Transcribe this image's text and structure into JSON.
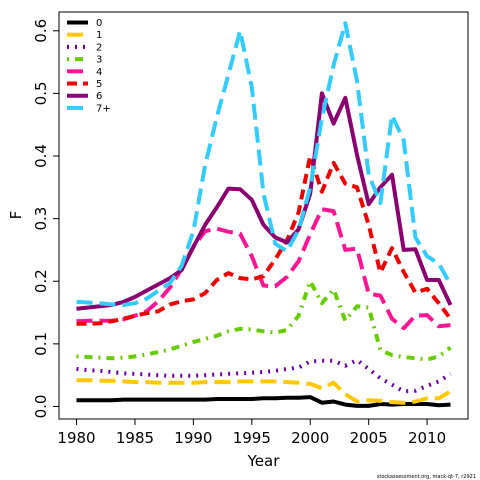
{
  "chart_data": {
    "type": "line",
    "xlabel": "Year",
    "ylabel": "F",
    "xlim": [
      1978.5,
      2013.5
    ],
    "ylim": [
      -0.02,
      0.63
    ],
    "xticks": [
      1980,
      1985,
      1990,
      1995,
      2000,
      2005,
      2010
    ],
    "xtick_labels": [
      "1980",
      "1985",
      "1990",
      "1995",
      "2000",
      "2005",
      "2010"
    ],
    "yticks": [
      0.0,
      0.1,
      0.2,
      0.3,
      0.4,
      0.5,
      0.6
    ],
    "ytick_labels": [
      "0.0",
      "0.1",
      "0.2",
      "0.3",
      "0.4",
      "0.5",
      "0.6"
    ],
    "grid": false,
    "legend_position": "top-left",
    "x": [
      1980,
      1981,
      1982,
      1983,
      1984,
      1985,
      1986,
      1987,
      1988,
      1989,
      1990,
      1991,
      1992,
      1993,
      1994,
      1995,
      1996,
      1997,
      1998,
      1999,
      2000,
      2001,
      2002,
      2003,
      2004,
      2005,
      2006,
      2007,
      2008,
      2009,
      2010,
      2011,
      2012
    ],
    "series": [
      {
        "name": "0",
        "color": "#000000",
        "dash": "solid",
        "values": [
          0.01,
          0.01,
          0.01,
          0.01,
          0.011,
          0.011,
          0.011,
          0.011,
          0.011,
          0.011,
          0.011,
          0.011,
          0.012,
          0.012,
          0.012,
          0.012,
          0.013,
          0.013,
          0.014,
          0.014,
          0.015,
          0.006,
          0.008,
          0.003,
          0.001,
          0.001,
          0.004,
          0.003,
          0.004,
          0.004,
          0.004,
          0.002,
          0.003
        ]
      },
      {
        "name": "1",
        "color": "#FFC800",
        "dash": "longdash",
        "values": [
          0.042,
          0.042,
          0.041,
          0.041,
          0.04,
          0.039,
          0.039,
          0.038,
          0.038,
          0.038,
          0.038,
          0.039,
          0.039,
          0.039,
          0.04,
          0.04,
          0.04,
          0.04,
          0.039,
          0.038,
          0.036,
          0.029,
          0.038,
          0.02,
          0.008,
          0.01,
          0.009,
          0.007,
          0.006,
          0.008,
          0.013,
          0.013,
          0.024
        ]
      },
      {
        "name": "2",
        "color": "#6A00AA",
        "dash": "dotted",
        "values": [
          0.06,
          0.058,
          0.057,
          0.055,
          0.053,
          0.052,
          0.051,
          0.05,
          0.049,
          0.049,
          0.049,
          0.05,
          0.051,
          0.052,
          0.053,
          0.054,
          0.055,
          0.057,
          0.06,
          0.062,
          0.072,
          0.073,
          0.073,
          0.065,
          0.074,
          0.06,
          0.045,
          0.035,
          0.024,
          0.025,
          0.033,
          0.04,
          0.052
        ]
      },
      {
        "name": "3",
        "color": "#66CC00",
        "dash": "dotdash",
        "values": [
          0.08,
          0.079,
          0.078,
          0.077,
          0.078,
          0.08,
          0.083,
          0.087,
          0.091,
          0.097,
          0.103,
          0.108,
          0.113,
          0.12,
          0.124,
          0.123,
          0.12,
          0.118,
          0.122,
          0.145,
          0.2,
          0.165,
          0.187,
          0.137,
          0.16,
          0.158,
          0.09,
          0.082,
          0.079,
          0.077,
          0.075,
          0.08,
          0.094
        ]
      },
      {
        "name": "4",
        "color": "#FF1493",
        "dash": "longdash",
        "values": [
          0.136,
          0.137,
          0.137,
          0.137,
          0.139,
          0.145,
          0.152,
          0.168,
          0.19,
          0.22,
          0.255,
          0.28,
          0.284,
          0.279,
          0.276,
          0.24,
          0.193,
          0.192,
          0.207,
          0.232,
          0.275,
          0.315,
          0.312,
          0.25,
          0.252,
          0.18,
          0.177,
          0.14,
          0.125,
          0.145,
          0.146,
          0.128,
          0.13
        ]
      },
      {
        "name": "5",
        "color": "#EE0000",
        "dash": "dashed",
        "values": [
          0.132,
          0.132,
          0.133,
          0.136,
          0.14,
          0.145,
          0.149,
          0.152,
          0.163,
          0.168,
          0.171,
          0.181,
          0.202,
          0.213,
          0.205,
          0.203,
          0.208,
          0.235,
          0.265,
          0.31,
          0.4,
          0.343,
          0.389,
          0.356,
          0.35,
          0.29,
          0.214,
          0.253,
          0.215,
          0.182,
          0.188,
          0.165,
          0.14
        ]
      },
      {
        "name": "6",
        "color": "#8B0070",
        "dash": "solid",
        "values": [
          0.156,
          0.158,
          0.16,
          0.162,
          0.167,
          0.175,
          0.185,
          0.195,
          0.205,
          0.218,
          0.255,
          0.29,
          0.318,
          0.348,
          0.347,
          0.33,
          0.29,
          0.27,
          0.262,
          0.283,
          0.34,
          0.5,
          0.452,
          0.493,
          0.402,
          0.323,
          0.35,
          0.37,
          0.25,
          0.251,
          0.202,
          0.202,
          0.162
        ]
      },
      {
        "name": "7+",
        "color": "#33CCFF",
        "dash": "longdash",
        "values": [
          0.167,
          0.166,
          0.165,
          0.163,
          0.162,
          0.165,
          0.172,
          0.185,
          0.197,
          0.225,
          0.28,
          0.385,
          0.462,
          0.53,
          0.6,
          0.51,
          0.34,
          0.26,
          0.248,
          0.282,
          0.35,
          0.46,
          0.545,
          0.612,
          0.52,
          0.37,
          0.325,
          0.465,
          0.425,
          0.27,
          0.24,
          0.228,
          0.195
        ]
      }
    ]
  },
  "credit": "stockassessment.org, mack-qt-7, r2921"
}
